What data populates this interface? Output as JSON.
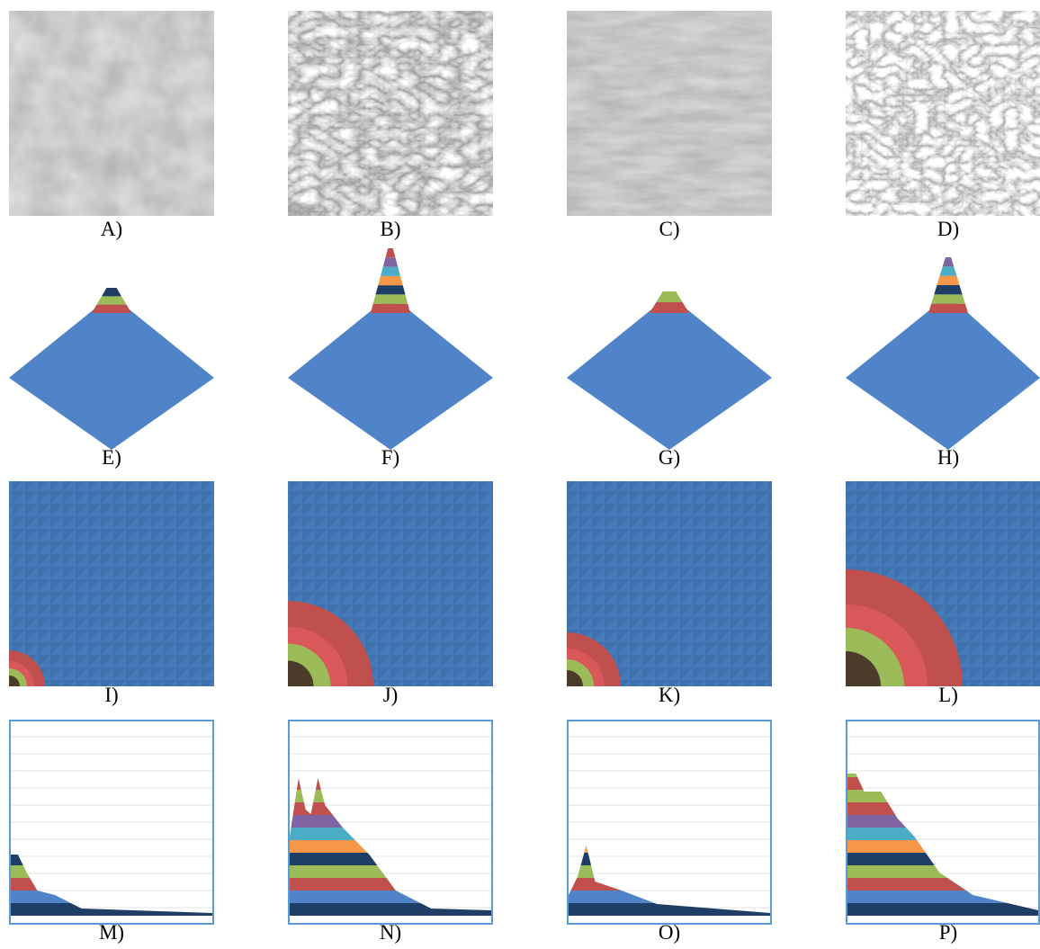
{
  "panels": [
    {
      "label": "A)"
    },
    {
      "label": "B)"
    },
    {
      "label": "C)"
    },
    {
      "label": "D)"
    },
    {
      "label": "E)"
    },
    {
      "label": "F)"
    },
    {
      "label": "G)"
    },
    {
      "label": "H)"
    },
    {
      "label": "I)"
    },
    {
      "label": "J)"
    },
    {
      "label": "K)"
    },
    {
      "label": "L)"
    },
    {
      "label": "M)"
    },
    {
      "label": "N)"
    },
    {
      "label": "O)"
    },
    {
      "label": "P)"
    }
  ]
}
